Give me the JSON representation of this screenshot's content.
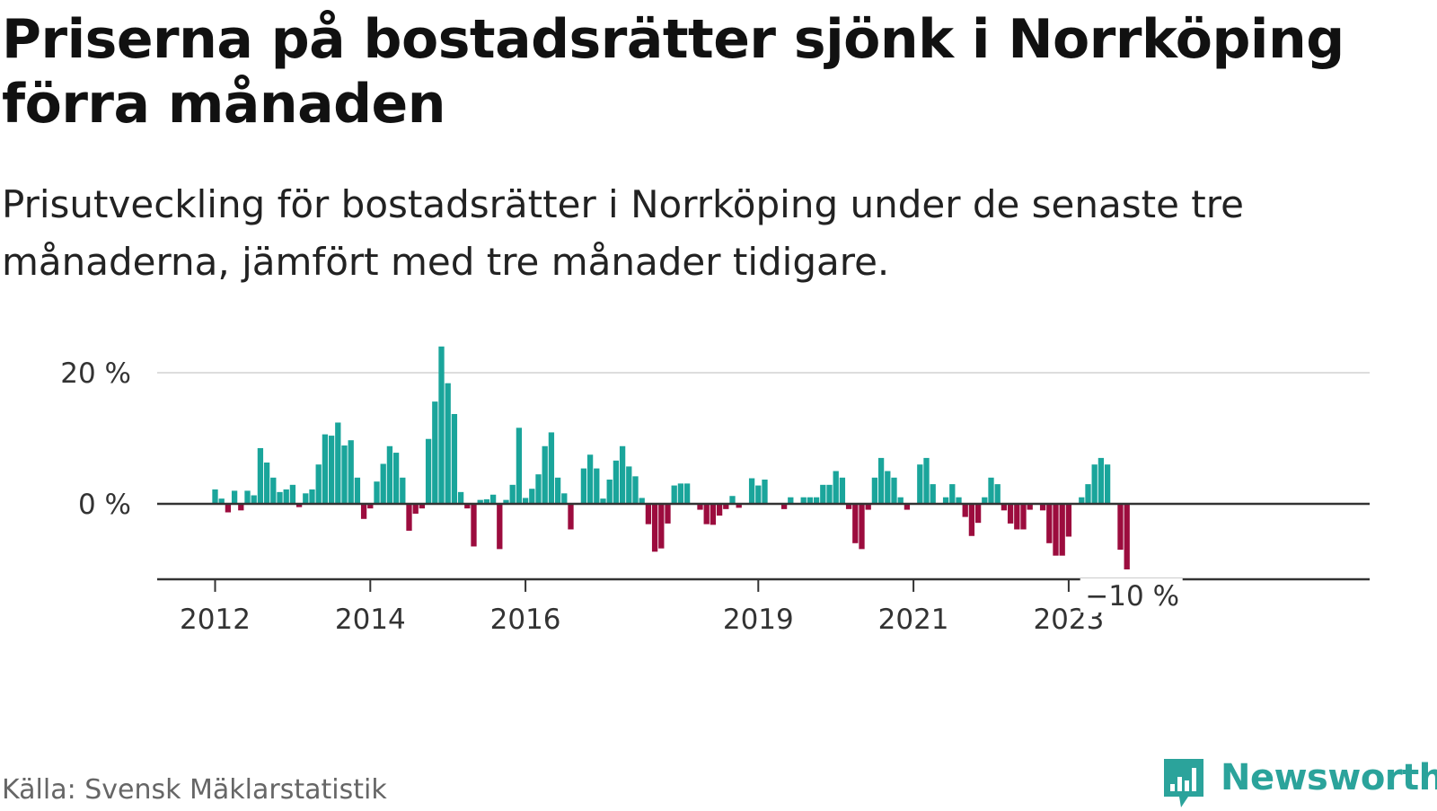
{
  "title": "Priserna på bostadsrätter sjönk i Norrköping förra månaden",
  "subtitle": "Prisutveckling för bostadsrätter i Norrköping under de senaste tre månaderna, jämfört med tre månader tidigare.",
  "source": "Källa: Svensk Mäklarstatistik",
  "brand": "Newsworthy",
  "colors": {
    "positive": "#1aa59b",
    "negative": "#9c0c3e",
    "axis": "#333333",
    "grid": "#dddddd",
    "brand": "#2ba39b"
  },
  "chart_data": {
    "type": "bar",
    "title": "",
    "xlabel": "",
    "ylabel": "",
    "ylim": [
      -11.5,
      25
    ],
    "grid": true,
    "y_ticks": [
      {
        "value": 20,
        "label": "20 %"
      },
      {
        "value": 0,
        "label": "0 %"
      }
    ],
    "x_ticks": [
      {
        "index": 0,
        "label": "2012"
      },
      {
        "index": 24,
        "label": "2014"
      },
      {
        "index": 48,
        "label": "2016"
      },
      {
        "index": 84,
        "label": "2019"
      },
      {
        "index": 108,
        "label": "2021"
      },
      {
        "index": 132,
        "label": "2023"
      }
    ],
    "end_label": {
      "text": "−10 %",
      "value": -10
    },
    "start": "2012-01",
    "end": "2023-10",
    "values": [
      2.2,
      0.8,
      -1.3,
      2.0,
      -1.0,
      2.0,
      1.3,
      8.5,
      6.3,
      4.0,
      1.8,
      2.2,
      2.9,
      -0.5,
      1.6,
      2.2,
      6.0,
      10.6,
      10.4,
      12.4,
      8.9,
      9.7,
      4.0,
      -2.3,
      -0.7,
      3.4,
      6.1,
      8.8,
      7.8,
      4.0,
      -4.1,
      -1.5,
      -0.7,
      9.9,
      15.6,
      24.0,
      18.4,
      13.7,
      1.8,
      -0.7,
      -6.5,
      0.6,
      0.7,
      1.4,
      -6.9,
      0.6,
      2.9,
      11.6,
      0.9,
      2.3,
      4.5,
      8.8,
      10.9,
      4.0,
      1.6,
      -3.9,
      0.1,
      5.4,
      7.5,
      5.4,
      0.8,
      3.7,
      6.6,
      8.8,
      5.7,
      4.2,
      0.9,
      -3.1,
      -7.3,
      -6.8,
      -3.0,
      2.8,
      3.1,
      3.1,
      0.1,
      -0.9,
      -3.1,
      -3.2,
      -1.8,
      -0.8,
      1.2,
      -0.6,
      0.0,
      3.9,
      2.8,
      3.7,
      0.0,
      0.0,
      -0.8,
      1.0,
      0.1,
      1.0,
      1.0,
      1.0,
      2.9,
      2.9,
      5.0,
      4.0,
      -0.8,
      -6.0,
      -6.9,
      -0.9,
      4.0,
      7.0,
      5.0,
      4.0,
      1.0,
      -0.9,
      0.0,
      6.0,
      7.0,
      3.0,
      0.1,
      1.0,
      3.0,
      1.0,
      -2.0,
      -4.9,
      -2.9,
      1.0,
      4.0,
      3.0,
      -1.0,
      -3.0,
      -3.9,
      -3.9,
      -0.9,
      0.0,
      -1.0,
      -6.0,
      -7.9,
      -7.9,
      -5.0,
      0.0,
      1.0,
      3.0,
      6.0,
      7.0,
      6.0,
      0.0,
      -7.0,
      -10.0
    ]
  }
}
